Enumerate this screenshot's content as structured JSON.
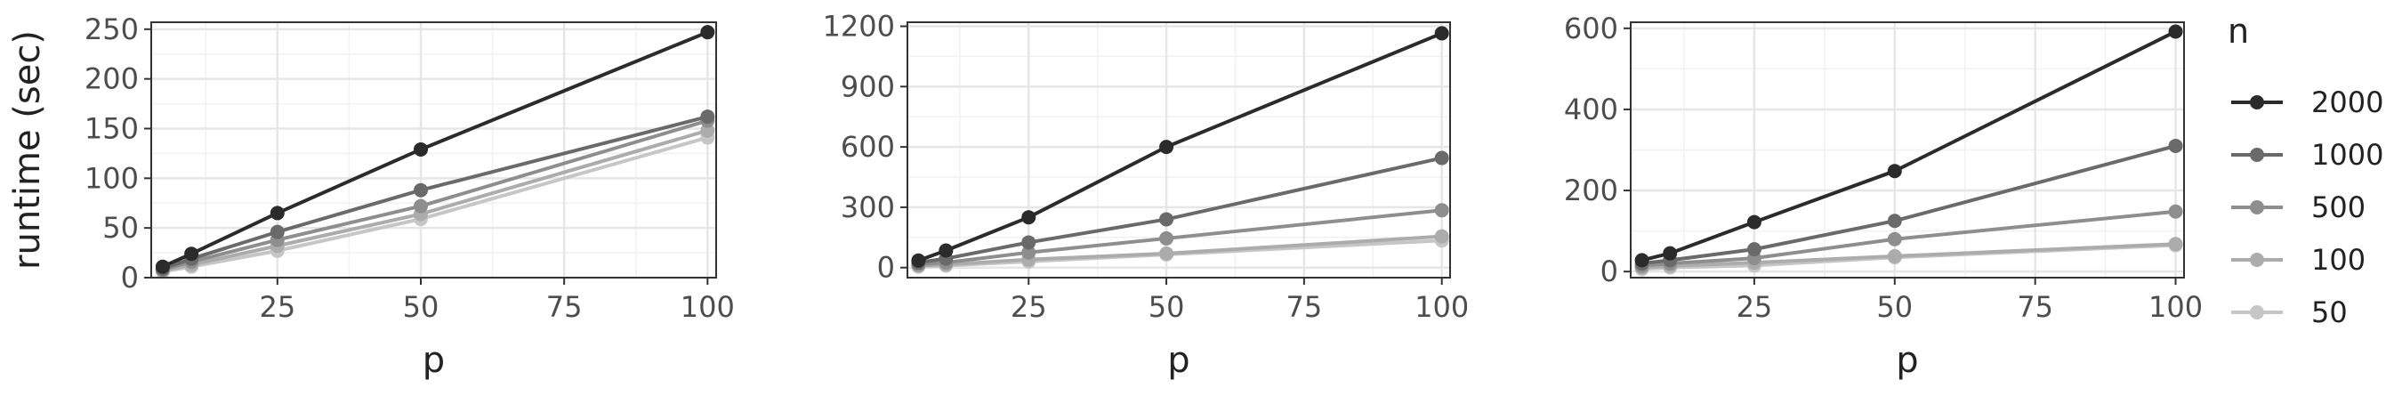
{
  "legend": {
    "title": "n",
    "entries": [
      {
        "label": "2000",
        "color": "#2b2b2b"
      },
      {
        "label": "1000",
        "color": "#6a6a6a"
      },
      {
        "label": "500",
        "color": "#8e8e8e"
      },
      {
        "label": "100",
        "color": "#acacac"
      },
      {
        "label": "50",
        "color": "#c6c6c6"
      }
    ],
    "placement": "right"
  },
  "chart_data": [
    {
      "type": "line",
      "title": "",
      "xlabel": "p",
      "ylabel": "runtime (sec)",
      "x": [
        5,
        10,
        25,
        50,
        100
      ],
      "xlim": [
        3,
        101.5
      ],
      "ylim": [
        0,
        257
      ],
      "xticks": [
        25,
        50,
        75,
        100
      ],
      "yticks": [
        0,
        50,
        100,
        150,
        200,
        250
      ],
      "grid": true,
      "series": [
        {
          "name": "2000",
          "values": [
            11,
            24,
            65,
            129,
            247
          ]
        },
        {
          "name": "1000",
          "values": [
            9,
            19,
            46,
            88,
            162
          ]
        },
        {
          "name": "500",
          "values": [
            8,
            16,
            38,
            72,
            158
          ]
        },
        {
          "name": "100",
          "values": [
            7,
            13,
            32,
            64,
            148
          ]
        },
        {
          "name": "50",
          "values": [
            6,
            11,
            27,
            59,
            141
          ]
        }
      ]
    },
    {
      "type": "line",
      "title": "",
      "xlabel": "p",
      "ylabel": "",
      "x": [
        5,
        10,
        25,
        50,
        100
      ],
      "xlim": [
        3,
        101.5
      ],
      "ylim": [
        -50,
        1220
      ],
      "xticks": [
        25,
        50,
        75,
        100
      ],
      "yticks": [
        0,
        300,
        600,
        900,
        1200
      ],
      "grid": true,
      "series": [
        {
          "name": "2000",
          "values": [
            35,
            85,
            250,
            600,
            1165
          ]
        },
        {
          "name": "1000",
          "values": [
            25,
            45,
            125,
            240,
            545
          ]
        },
        {
          "name": "500",
          "values": [
            15,
            25,
            75,
            145,
            285
          ]
        },
        {
          "name": "100",
          "values": [
            10,
            15,
            40,
            70,
            155
          ]
        },
        {
          "name": "50",
          "values": [
            5,
            10,
            30,
            65,
            135
          ]
        }
      ]
    },
    {
      "type": "line",
      "title": "",
      "xlabel": "p",
      "ylabel": "",
      "x": [
        5,
        10,
        25,
        50,
        100
      ],
      "xlim": [
        3,
        101.5
      ],
      "ylim": [
        -15,
        615
      ],
      "xticks": [
        25,
        50,
        75,
        100
      ],
      "yticks": [
        0,
        200,
        400,
        600
      ],
      "grid": true,
      "series": [
        {
          "name": "2000",
          "values": [
            28,
            45,
            122,
            248,
            592
          ]
        },
        {
          "name": "1000",
          "values": [
            20,
            28,
            55,
            125,
            310
          ]
        },
        {
          "name": "500",
          "values": [
            14,
            20,
            33,
            80,
            148
          ]
        },
        {
          "name": "100",
          "values": [
            10,
            14,
            22,
            38,
            68
          ]
        },
        {
          "name": "50",
          "values": [
            6,
            10,
            15,
            35,
            65
          ]
        }
      ]
    }
  ]
}
